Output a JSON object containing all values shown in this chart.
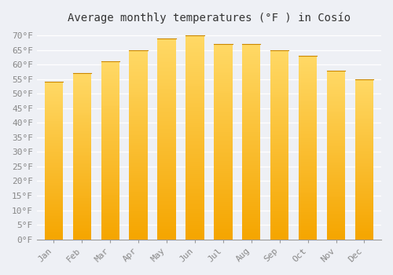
{
  "title": "Average monthly temperatures (°F ) in Cosío",
  "months": [
    "Jan",
    "Feb",
    "Mar",
    "Apr",
    "May",
    "Jun",
    "Jul",
    "Aug",
    "Sep",
    "Oct",
    "Nov",
    "Dec"
  ],
  "values": [
    54,
    57,
    61,
    65,
    69,
    70,
    67,
    67,
    65,
    63,
    58,
    55
  ],
  "bar_color_bottom": "#F5A500",
  "bar_color_top": "#FFD966",
  "background_color": "#EEF0F5",
  "plot_bg_color": "#EEF0F5",
  "grid_color": "#FFFFFF",
  "ylim": [
    0,
    72
  ],
  "yticks": [
    0,
    5,
    10,
    15,
    20,
    25,
    30,
    35,
    40,
    45,
    50,
    55,
    60,
    65,
    70
  ],
  "title_fontsize": 10,
  "tick_fontsize": 8,
  "font_family": "monospace"
}
